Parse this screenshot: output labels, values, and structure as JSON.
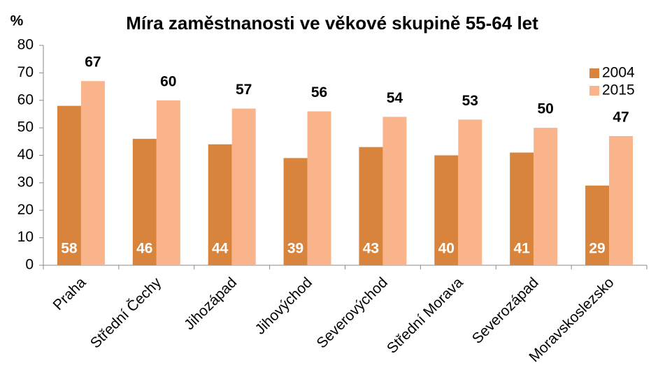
{
  "chart_data": {
    "type": "bar",
    "title": "Míra zaměstnanosti ve věkové skupině 55-64 let",
    "y_axis_label": "%",
    "categories": [
      "Praha",
      "Střední Čechy",
      "Jihozápad",
      "Jihovýchod",
      "Severovýchod",
      "Střední Morava",
      "Severozápad",
      "Moravskoslezsko"
    ],
    "series": [
      {
        "name": "2004",
        "color": "#d8843c",
        "values": [
          58,
          46,
          44,
          39,
          43,
          40,
          41,
          29
        ]
      },
      {
        "name": "2015",
        "color": "#f9b48c",
        "values": [
          67,
          60,
          57,
          56,
          54,
          53,
          50,
          47
        ]
      }
    ],
    "ylim": [
      0,
      80
    ],
    "yticks": [
      0,
      10,
      20,
      30,
      40,
      50,
      60,
      70,
      80
    ],
    "grid": false,
    "legend": "right"
  }
}
